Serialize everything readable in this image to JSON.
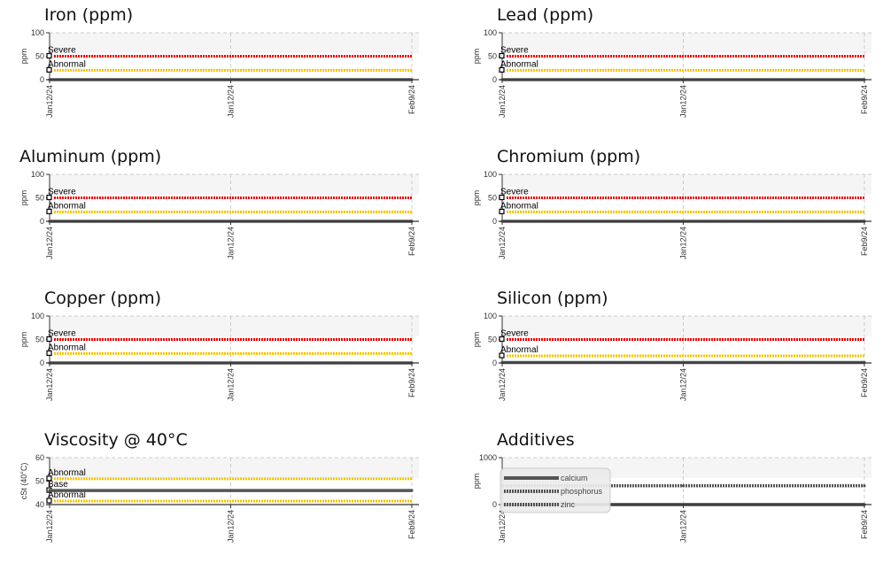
{
  "colors": {
    "severe": "#e60000",
    "abnormal": "#f5c400",
    "data": "#555555",
    "grid": "#cccccc"
  },
  "chart_data": [
    {
      "id": "iron",
      "title": "Iron (ppm)",
      "type": "line",
      "ylabel": "ppm",
      "ylim": [
        0,
        100
      ],
      "yticks": [
        "0",
        "50",
        "100"
      ],
      "xticks": [
        "Jan12/24",
        "Jan12/24",
        "Feb9/24"
      ],
      "limits": [
        {
          "label": "Severe",
          "value": 50,
          "kind": "severe"
        },
        {
          "label": "Abnormal",
          "value": 20,
          "kind": "abnormal"
        }
      ],
      "series": [
        {
          "values": [
            0,
            0,
            0
          ]
        }
      ]
    },
    {
      "id": "lead",
      "title": "Lead (ppm)",
      "type": "line",
      "ylabel": "ppm",
      "ylim": [
        0,
        100
      ],
      "yticks": [
        "0",
        "50",
        "100"
      ],
      "xticks": [
        "Jan12/24",
        "Jan12/24",
        "Feb9/24"
      ],
      "limits": [
        {
          "label": "Severe",
          "value": 50,
          "kind": "severe"
        },
        {
          "label": "Abnormal",
          "value": 20,
          "kind": "abnormal"
        }
      ],
      "series": [
        {
          "values": [
            0,
            0,
            0
          ]
        }
      ]
    },
    {
      "id": "aluminum",
      "title": "Aluminum (ppm)",
      "type": "line",
      "ylabel": "ppm",
      "ylim": [
        0,
        100
      ],
      "yticks": [
        "0",
        "50",
        "100"
      ],
      "xticks": [
        "Jan12/24",
        "Jan12/24",
        "Feb9/24"
      ],
      "limits": [
        {
          "label": "Severe",
          "value": 50,
          "kind": "severe"
        },
        {
          "label": "Abnormal",
          "value": 20,
          "kind": "abnormal"
        }
      ],
      "series": [
        {
          "values": [
            0,
            0,
            0
          ]
        }
      ]
    },
    {
      "id": "chromium",
      "title": "Chromium (ppm)",
      "type": "line",
      "ylabel": "ppm",
      "ylim": [
        0,
        100
      ],
      "yticks": [
        "0",
        "50",
        "100"
      ],
      "xticks": [
        "Jan12/24",
        "Jan12/24",
        "Feb9/24"
      ],
      "limits": [
        {
          "label": "Severe",
          "value": 50,
          "kind": "severe"
        },
        {
          "label": "Abnormal",
          "value": 20,
          "kind": "abnormal"
        }
      ],
      "series": [
        {
          "values": [
            0,
            0,
            0
          ]
        }
      ]
    },
    {
      "id": "copper",
      "title": "Copper (ppm)",
      "type": "line",
      "ylabel": "ppm",
      "ylim": [
        0,
        100
      ],
      "yticks": [
        "0",
        "50",
        "100"
      ],
      "xticks": [
        "Jan12/24",
        "Jan12/24",
        "Feb9/24"
      ],
      "limits": [
        {
          "label": "Severe",
          "value": 50,
          "kind": "severe"
        },
        {
          "label": "Abnormal",
          "value": 20,
          "kind": "abnormal"
        }
      ],
      "series": [
        {
          "values": [
            0,
            0,
            0
          ]
        }
      ]
    },
    {
      "id": "silicon",
      "title": "Silicon (ppm)",
      "type": "line",
      "ylabel": "ppm",
      "ylim": [
        0,
        100
      ],
      "yticks": [
        "0",
        "50",
        "100"
      ],
      "xticks": [
        "Jan12/24",
        "Jan12/24",
        "Feb9/24"
      ],
      "limits": [
        {
          "label": "Severe",
          "value": 50,
          "kind": "severe"
        },
        {
          "label": "Abnormal",
          "value": 15,
          "kind": "abnormal"
        }
      ],
      "series": [
        {
          "values": [
            1,
            1,
            1
          ]
        }
      ]
    },
    {
      "id": "viscosity",
      "title": "Viscosity @ 40°C",
      "type": "line",
      "ylabel": "cSt (40°C)",
      "ylim": [
        40,
        60
      ],
      "yticks": [
        "40",
        "50",
        "60"
      ],
      "xticks": [
        "Jan12/24",
        "Jan12/24",
        "Feb9/24"
      ],
      "limits": [
        {
          "label": "Abnormal",
          "value": 51,
          "kind": "abnormal"
        },
        {
          "label": "Base",
          "value": 46,
          "kind": "base"
        },
        {
          "label": "Abnormal",
          "value": 41.5,
          "kind": "abnormal"
        }
      ],
      "series": [
        {
          "values": [
            46,
            46,
            46
          ]
        }
      ]
    },
    {
      "id": "additives",
      "title": "Additives",
      "type": "line",
      "ylabel": "ppm",
      "ylim": [
        0,
        1000
      ],
      "yticks": [
        "0",
        "1000"
      ],
      "xticks": [
        "Jan12/24",
        "Jan12/24",
        "Feb9/24"
      ],
      "limits": [],
      "legend_position": "top-left",
      "series": [
        {
          "name": "calcium",
          "values": [
            400,
            400,
            400
          ]
        },
        {
          "name": "phosphorus",
          "values": [
            0,
            0,
            0
          ]
        },
        {
          "name": "zinc",
          "values": [
            0,
            0,
            0
          ]
        }
      ]
    }
  ]
}
